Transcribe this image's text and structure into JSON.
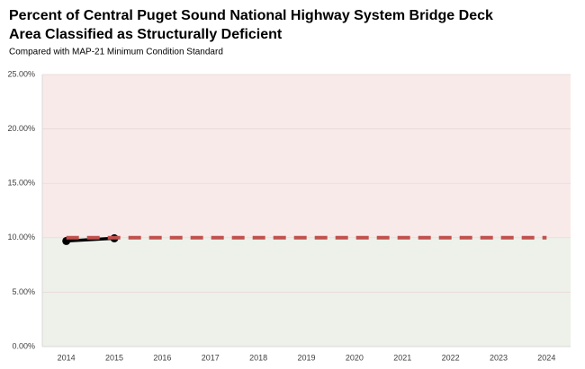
{
  "chart_data": {
    "type": "line",
    "title": [
      "Percent of Central Puget Sound National Highway System Bridge Deck",
      "Area Classified as Structurally Deficient"
    ],
    "subtitle": "Compared with MAP-21 Minimum Condition Standard",
    "categories": [
      "2014",
      "2015",
      "2016",
      "2017",
      "2018",
      "2019",
      "2020",
      "2021",
      "2022",
      "2023",
      "2024"
    ],
    "series": [
      {
        "color": "#000000",
        "values": [
          9.7,
          9.95,
          null,
          null,
          null,
          null,
          null,
          null,
          null,
          null,
          null
        ]
      },
      {
        "color": "#c0504d",
        "dashed": true,
        "values": [
          10,
          10,
          10,
          10,
          10,
          10,
          10,
          10,
          10,
          10,
          10
        ]
      }
    ],
    "ylim": [
      0,
      25
    ],
    "yticks": [
      {
        "value": 0,
        "label": "0.00%"
      },
      {
        "value": 5,
        "label": "5.00%"
      },
      {
        "value": 10,
        "label": "10.00%"
      },
      {
        "value": 15,
        "label": "15.00%"
      },
      {
        "value": 20,
        "label": "20.00%"
      },
      {
        "value": 25,
        "label": "25.00%"
      }
    ],
    "grid": true
  }
}
